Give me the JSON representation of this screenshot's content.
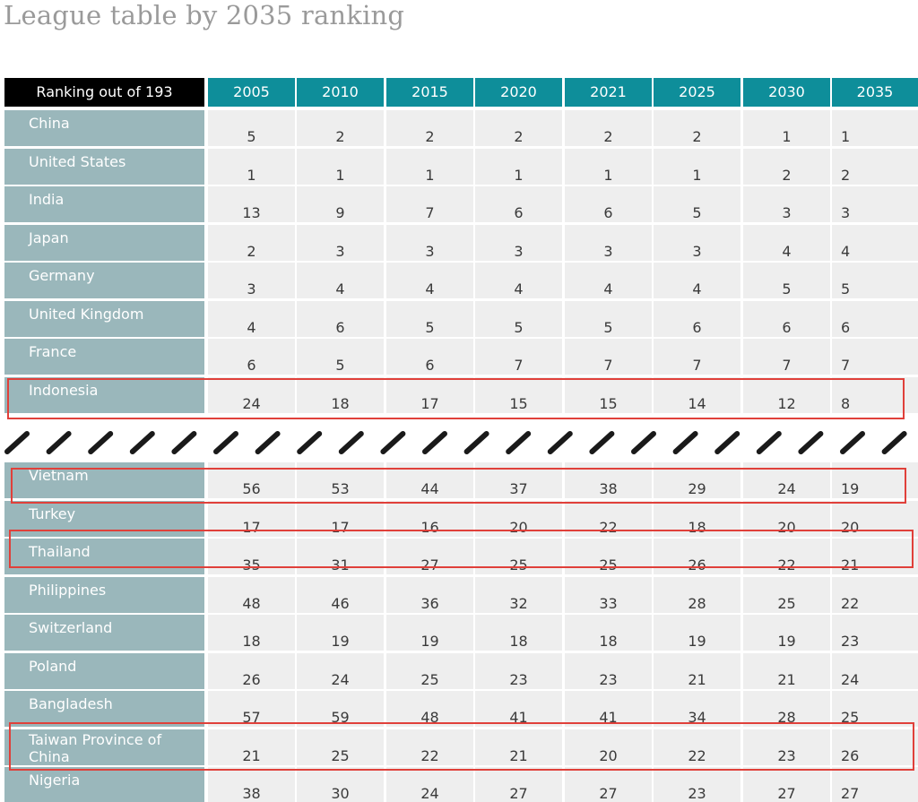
{
  "title": "League table by 2035 ranking",
  "colors": {
    "header_year": "#0e8e9a",
    "header_corner": "#000000",
    "country_bg": "#9ab7bb",
    "cell_bg": "#eeeeee",
    "highlight": "#e0403a"
  },
  "chart_data": {
    "type": "table",
    "title": "League table by 2035 ranking",
    "corner_label": "Ranking out of 193",
    "columns": [
      "2005",
      "2010",
      "2015",
      "2020",
      "2021",
      "2025",
      "2030",
      "2035"
    ],
    "top_rows": [
      {
        "country": "China",
        "values": [
          "5",
          "2",
          "2",
          "2",
          "2",
          "2",
          "1",
          "1"
        ]
      },
      {
        "country": "United States",
        "values": [
          "1",
          "1",
          "1",
          "1",
          "1",
          "1",
          "2",
          "2"
        ]
      },
      {
        "country": "India",
        "values": [
          "13",
          "9",
          "7",
          "6",
          "6",
          "5",
          "3",
          "3"
        ]
      },
      {
        "country": "Japan",
        "values": [
          "2",
          "3",
          "3",
          "3",
          "3",
          "3",
          "4",
          "4"
        ]
      },
      {
        "country": "Germany",
        "values": [
          "3",
          "4",
          "4",
          "4",
          "4",
          "4",
          "5",
          "5"
        ]
      },
      {
        "country": "United Kingdom",
        "values": [
          "4",
          "6",
          "5",
          "5",
          "5",
          "6",
          "6",
          "6"
        ]
      },
      {
        "country": "France",
        "values": [
          "6",
          "5",
          "6",
          "7",
          "7",
          "7",
          "7",
          "7"
        ]
      },
      {
        "country": "Indonesia",
        "values": [
          "24",
          "18",
          "17",
          "15",
          "15",
          "14",
          "12",
          "8"
        ],
        "highlight": true
      }
    ],
    "bottom_rows": [
      {
        "country": "Vietnam",
        "values": [
          "56",
          "53",
          "44",
          "37",
          "38",
          "29",
          "24",
          "19"
        ],
        "highlight": true
      },
      {
        "country": "Turkey",
        "values": [
          "17",
          "17",
          "16",
          "20",
          "22",
          "18",
          "20",
          "20"
        ]
      },
      {
        "country": "Thailand",
        "values": [
          "35",
          "31",
          "27",
          "25",
          "25",
          "26",
          "22",
          "21"
        ],
        "highlight": true
      },
      {
        "country": "Philippines",
        "values": [
          "48",
          "46",
          "36",
          "32",
          "33",
          "28",
          "25",
          "22"
        ]
      },
      {
        "country": "Switzerland",
        "values": [
          "18",
          "19",
          "19",
          "18",
          "18",
          "19",
          "19",
          "23"
        ]
      },
      {
        "country": "Poland",
        "values": [
          "26",
          "24",
          "25",
          "23",
          "23",
          "21",
          "21",
          "24"
        ]
      },
      {
        "country": "Bangladesh",
        "values": [
          "57",
          "59",
          "48",
          "41",
          "41",
          "34",
          "28",
          "25"
        ]
      },
      {
        "country": "Taiwan Province of China",
        "values": [
          "21",
          "25",
          "22",
          "21",
          "20",
          "22",
          "23",
          "26"
        ],
        "highlight": true
      },
      {
        "country": "Nigeria",
        "values": [
          "38",
          "30",
          "24",
          "27",
          "27",
          "23",
          "27",
          "27"
        ]
      }
    ]
  }
}
